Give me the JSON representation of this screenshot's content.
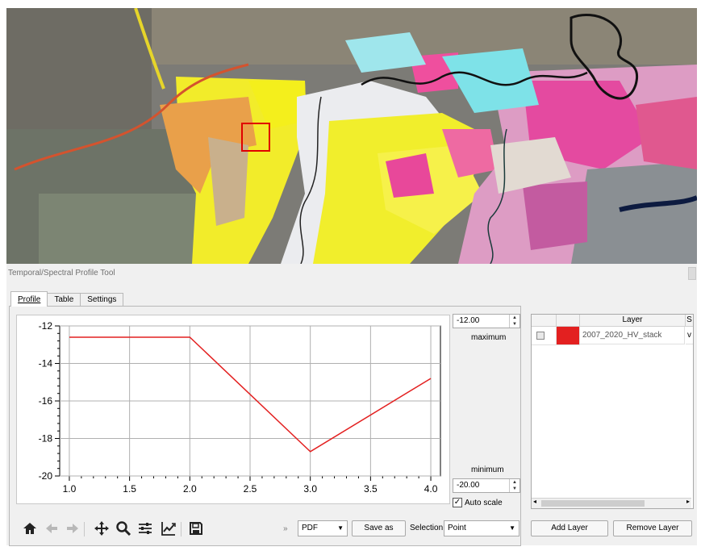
{
  "panel": {
    "title": "Temporal/Spectral Profile Tool",
    "tabs": [
      {
        "label": "Profile",
        "active": true
      },
      {
        "label": "Table",
        "active": false
      },
      {
        "label": "Settings",
        "active": false
      }
    ]
  },
  "scale": {
    "max_value": "-12.00",
    "max_label": "maximum",
    "min_label": "minimum",
    "min_value": "-20.00",
    "auto_scale_label": "Auto scale",
    "auto_scale_checked": true
  },
  "layers_table": {
    "headers": [
      "Layer",
      "S"
    ],
    "rows": [
      {
        "color": "#e32020",
        "layer": "2007_2020_HV_stack",
        "s": "v"
      }
    ]
  },
  "toolbar": {
    "icons": [
      "home-icon",
      "back-arrow-icon",
      "forward-arrow-icon",
      "pan-icon",
      "zoom-icon",
      "configure-subplots-icon",
      "edit-axis-icon",
      "save-icon"
    ],
    "overflow": "»",
    "format_value": "PDF",
    "save_as_label": "Save as",
    "selection_label": "Selection",
    "selection_value": "Point"
  },
  "layer_buttons": {
    "add": "Add Layer",
    "remove": "Remove Layer"
  },
  "colors": {
    "line": "#e32020",
    "selection_box": "#e00000",
    "grid": "#b0b0b0"
  },
  "chart_data": {
    "type": "line",
    "x": [
      1.0,
      2.0,
      3.0,
      4.0
    ],
    "series": [
      {
        "values": [
          -12.6,
          -12.6,
          -18.7,
          -14.8
        ]
      }
    ],
    "xlim": [
      0.92,
      4.08
    ],
    "ylim": [
      -20,
      -12
    ],
    "xticks": [
      "1.0",
      "1.5",
      "2.0",
      "2.5",
      "3.0",
      "3.5",
      "4.0"
    ],
    "yticks": [
      "-12",
      "-14",
      "-16",
      "-18",
      "-20"
    ],
    "grid": true,
    "title": "",
    "xlabel": "",
    "ylabel": ""
  }
}
